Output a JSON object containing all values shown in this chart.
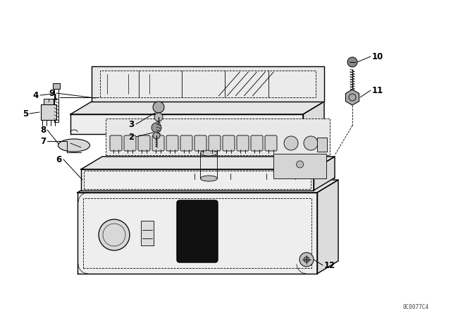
{
  "bg_color": "#ffffff",
  "line_color": "#000000",
  "watermark": "0C0077C4",
  "fig_width": 6.4,
  "fig_height": 4.48,
  "dpi": 100,
  "lw_main": 1.0,
  "lw_thin": 0.6,
  "lw_dash": 0.5,
  "gray_fill": "#f2f2f2",
  "dark_fill": "#111111",
  "mid_fill": "#e8e8e8"
}
